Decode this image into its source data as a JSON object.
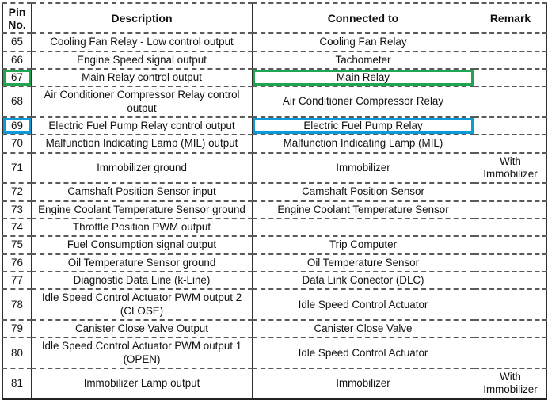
{
  "colors": {
    "highlight_green": "#22a553",
    "highlight_blue": "#0d9bd8",
    "grid_line": "#2e2e2e"
  },
  "table": {
    "headers": [
      "Pin No.",
      "Description",
      "Connected to",
      "Remark"
    ],
    "rows": [
      {
        "pin": "65",
        "description": "Cooling Fan Relay - Low control output",
        "connected": "Cooling Fan Relay",
        "remark": "",
        "highlight": null
      },
      {
        "pin": "66",
        "description": "Engine Speed signal output",
        "connected": "Tachometer",
        "remark": "",
        "highlight": null
      },
      {
        "pin": "67",
        "description": "Main Relay control output",
        "connected": "Main Relay",
        "remark": "",
        "highlight": "green"
      },
      {
        "pin": "68",
        "description": "Air Conditioner Compressor Relay control output",
        "connected": "Air Conditioner Compressor Relay",
        "remark": "",
        "highlight": null
      },
      {
        "pin": "69",
        "description": "Electric Fuel Pump Relay control output",
        "connected": "Electric Fuel Pump Relay",
        "remark": "",
        "highlight": "blue"
      },
      {
        "pin": "70",
        "description": "Malfunction Indicating Lamp (MIL) output",
        "connected": "Malfunction Indicating Lamp (MIL)",
        "remark": "",
        "highlight": null
      },
      {
        "pin": "71",
        "description": "Immobilizer ground",
        "connected": "Immobilizer",
        "remark": "With Immobilizer",
        "highlight": null
      },
      {
        "pin": "72",
        "description": "Camshaft Position Sensor input",
        "connected": "Camshaft Position Sensor",
        "remark": "",
        "highlight": null
      },
      {
        "pin": "73",
        "description": "Engine Coolant Temperature Sensor ground",
        "connected": "Engine Coolant Temperature Sensor",
        "remark": "",
        "highlight": null
      },
      {
        "pin": "74",
        "description": "Throttle Position PWM output",
        "connected": "",
        "remark": "",
        "highlight": null
      },
      {
        "pin": "75",
        "description": "Fuel Consumption signal output",
        "connected": "Trip Computer",
        "remark": "",
        "highlight": null
      },
      {
        "pin": "76",
        "description": "Oil Temperature Sensor ground",
        "connected": "Oil Temperature Sensor",
        "remark": "",
        "highlight": null
      },
      {
        "pin": "77",
        "description": "Diagnostic Data Line (k-Line)",
        "connected": "Data Link Conector (DLC)",
        "remark": "",
        "highlight": null
      },
      {
        "pin": "78",
        "description": "Idle Speed Control Actuator PWM output 2 (CLOSE)",
        "connected": "Idle Speed Control Actuator",
        "remark": "",
        "highlight": null
      },
      {
        "pin": "79",
        "description": "Canister Close Valve Output",
        "connected": "Canister Close Valve",
        "remark": "",
        "highlight": null
      },
      {
        "pin": "80",
        "description": "Idle Speed Control Actuator PWM output 1 (OPEN)",
        "connected": "Idle Speed Control Actuator",
        "remark": "",
        "highlight": null
      },
      {
        "pin": "81",
        "description": "Immobilizer Lamp output",
        "connected": "Immobilizer",
        "remark": "With Immobilizer",
        "highlight": null
      }
    ]
  }
}
